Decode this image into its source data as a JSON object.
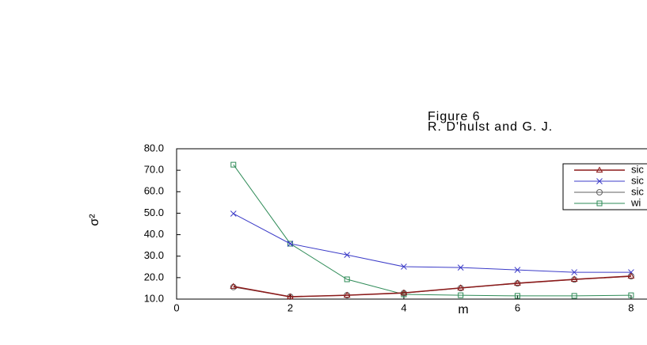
{
  "chart_data": {
    "type": "line",
    "title": "Figure 6",
    "subtitle": "R. D'hulst and G. J.",
    "x_label": "m",
    "y_label": "σ²",
    "x": [
      1,
      2,
      3,
      4,
      5,
      6,
      7,
      8
    ],
    "series": [
      {
        "name": "sic",
        "color": "#8b1a1a",
        "marker": "triangle",
        "values": [
          15.9,
          11.1,
          11.8,
          12.9,
          15.2,
          17.4,
          19.2,
          20.7
        ]
      },
      {
        "name": "sic",
        "color": "#3c3cc8",
        "marker": "cross",
        "values": [
          49.8,
          35.8,
          30.6,
          25.1,
          24.7,
          23.6,
          22.5,
          22.5
        ]
      },
      {
        "name": "sic",
        "color": "#606060",
        "marker": "circle",
        "values": [
          15.6,
          11.1,
          11.8,
          12.8,
          15.1,
          17.3,
          19.1,
          20.6
        ]
      },
      {
        "name": "wi",
        "color": "#2e8b57",
        "marker": "square",
        "values": [
          72.6,
          35.8,
          19.2,
          12.2,
          11.8,
          11.5,
          11.5,
          11.8
        ]
      }
    ],
    "xlim": [
      0,
      8.28
    ],
    "xticks": [
      0,
      2,
      4,
      6,
      8
    ],
    "ylim": [
      10,
      80
    ],
    "yticks": [
      {
        "value": 10,
        "label": "10.0"
      },
      {
        "value": 20,
        "label": "20.0"
      },
      {
        "value": 30,
        "label": "30.0"
      },
      {
        "value": 40,
        "label": "40.0"
      },
      {
        "value": 50,
        "label": "50.0"
      },
      {
        "value": 60,
        "label": "60.0"
      },
      {
        "value": 70,
        "label": "70.0"
      },
      {
        "value": 80,
        "label": "80.0"
      }
    ],
    "legend": "top-right"
  }
}
